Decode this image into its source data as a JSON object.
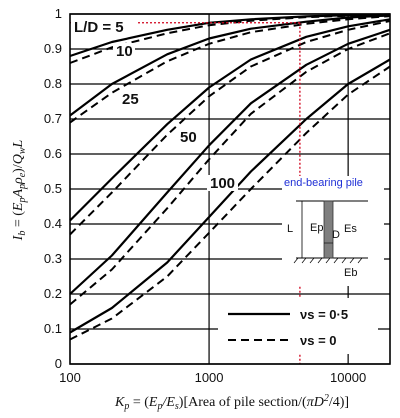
{
  "chart_data": {
    "type": "line",
    "xlabel": "Kp = (Ep/Es)[Area of pile section/(πD²/4)]",
    "ylabel": "Ib = (EpApρe)/QwL",
    "x_scale": "log",
    "xlim": [
      100,
      20000
    ],
    "ylim": [
      0,
      1
    ],
    "x_ticks": [
      "100",
      "1000",
      "10000"
    ],
    "y_ticks": [
      "0",
      "0.1",
      "0.2",
      "0.3",
      "0.4",
      "0.5",
      "0.6",
      "0.7",
      "0.8",
      "0.9",
      "1"
    ],
    "grid": true,
    "series_groups": [
      {
        "label": "L/D = 5",
        "nu": [
          {
            "x": [
              100,
              200,
              500,
              1000,
              2000,
              5000,
              10000,
              20000
            ],
            "y": [
              0.88,
              0.92,
              0.955,
              0.975,
              0.985,
              0.993,
              0.997,
              0.999
            ]
          },
          {
            "x": [
              100,
              200,
              500,
              1000,
              2000,
              5000,
              10000,
              20000
            ],
            "y": [
              0.86,
              0.905,
              0.945,
              0.968,
              0.981,
              0.991,
              0.995,
              0.998
            ]
          }
        ]
      },
      {
        "label": "10",
        "nu": [
          {
            "x": [
              100,
              200,
              500,
              1000,
              2000,
              5000,
              10000,
              20000
            ],
            "y": [
              0.71,
              0.8,
              0.885,
              0.93,
              0.958,
              0.978,
              0.99,
              0.996
            ]
          },
          {
            "x": [
              100,
              200,
              500,
              1000,
              2000,
              5000,
              10000,
              20000
            ],
            "y": [
              0.69,
              0.775,
              0.865,
              0.915,
              0.948,
              0.972,
              0.985,
              0.994
            ]
          }
        ]
      },
      {
        "label": "25",
        "nu": [
          {
            "x": [
              100,
              200,
              500,
              1000,
              2000,
              5000,
              10000,
              20000
            ],
            "y": [
              0.41,
              0.53,
              0.685,
              0.79,
              0.87,
              0.935,
              0.965,
              0.985
            ]
          },
          {
            "x": [
              100,
              200,
              500,
              1000,
              2000,
              5000,
              10000,
              20000
            ],
            "y": [
              0.37,
              0.49,
              0.655,
              0.765,
              0.85,
              0.92,
              0.955,
              0.98
            ]
          }
        ]
      },
      {
        "label": "50",
        "nu": [
          {
            "x": [
              100,
              200,
              500,
              1000,
              2000,
              5000,
              10000,
              20000
            ],
            "y": [
              0.2,
              0.31,
              0.49,
              0.625,
              0.745,
              0.855,
              0.915,
              0.955
            ]
          },
          {
            "x": [
              100,
              200,
              500,
              1000,
              2000,
              5000,
              10000,
              20000
            ],
            "y": [
              0.17,
              0.27,
              0.445,
              0.585,
              0.715,
              0.835,
              0.9,
              0.945
            ]
          }
        ]
      },
      {
        "label": "100",
        "nu": [
          {
            "x": [
              100,
              200,
              500,
              1000,
              2000,
              5000,
              10000,
              20000
            ],
            "y": [
              0.09,
              0.16,
              0.29,
              0.42,
              0.55,
              0.7,
              0.8,
              0.87
            ]
          },
          {
            "x": [
              100,
              200,
              500,
              1000,
              2000,
              5000,
              10000,
              20000
            ],
            "y": [
              0.07,
              0.13,
              0.25,
              0.375,
              0.5,
              0.66,
              0.77,
              0.85
            ]
          }
        ]
      }
    ],
    "legend": {
      "placement": "bottom-right",
      "entries": [
        {
          "label": "νs = 0·5",
          "style": "solid"
        },
        {
          "label": "νs = 0",
          "style": "dashed"
        }
      ]
    },
    "guide_lines": {
      "color": "#d0021b",
      "x": 4500,
      "y": 0.975
    },
    "inset": {
      "title": "end-bearing pile",
      "labels": [
        "L",
        "Ep",
        "D",
        "Es",
        "Eb"
      ]
    }
  }
}
